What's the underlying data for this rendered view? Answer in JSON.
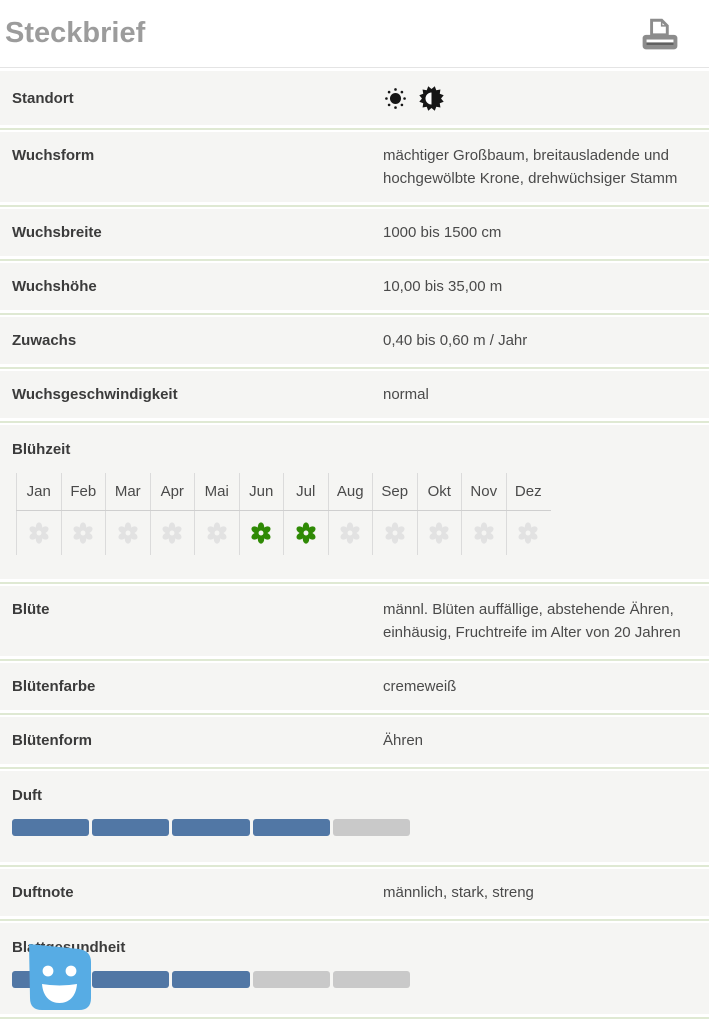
{
  "page": {
    "title": "Steckbrief"
  },
  "toolbar": {
    "print_button": "printer-icon"
  },
  "colors": {
    "bar_filled_blue": "#5177a5",
    "bar_empty_gray": "#c9c9c9",
    "flower_active_green": "#2f8a05",
    "flower_inactive_gray": "#e2e2e2",
    "flower_hole": "#f5f5f3",
    "row_background": "#f5f5f3",
    "divider_green": "#dfe9d3",
    "title_gray": "#9c9c9c",
    "icon_gray": "#8c8c8c",
    "chat_blue": "#57ace4",
    "standort_icon_black": "#161616"
  },
  "rows": [
    {
      "label": "Standort",
      "type": "icons",
      "icons": [
        "sun-icon",
        "half-shade-icon"
      ]
    },
    {
      "label": "Wuchsform",
      "type": "text",
      "value": "mächtiger Großbaum, breitausladende und hochgewölbte Krone, drehwüchsiger Stamm"
    },
    {
      "label": "Wuchsbreite",
      "type": "text",
      "value": "1000 bis 1500 cm"
    },
    {
      "label": "Wuchshöhe",
      "type": "text",
      "value": "10,00 bis 35,00 m"
    },
    {
      "label": "Zuwachs",
      "type": "text",
      "value": "0,40 bis 0,60 m / Jahr"
    },
    {
      "label": "Wuchsgeschwindigkeit",
      "type": "text",
      "value": "normal"
    },
    {
      "label": "Blühzeit",
      "type": "months",
      "months": [
        "Jan",
        "Feb",
        "Mar",
        "Apr",
        "Mai",
        "Jun",
        "Jul",
        "Aug",
        "Sep",
        "Okt",
        "Nov",
        "Dez"
      ],
      "active_month_indexes": [
        5,
        6
      ]
    },
    {
      "label": "Blüte",
      "type": "text",
      "value": "männl. Blüten auffällige, abstehende Ähren, einhäusig, Fruchtreife im Alter von 20 Jahren"
    },
    {
      "label": "Blütenfarbe",
      "type": "text",
      "value": "cremeweiß"
    },
    {
      "label": "Blütenform",
      "type": "text",
      "value": "Ähren"
    },
    {
      "label": "Duft",
      "type": "bar",
      "filled": 4,
      "total": 5
    },
    {
      "label": "Duftnote",
      "type": "text",
      "value": "männlich, stark, streng"
    },
    {
      "label": "Blattgesundheit",
      "type": "bar",
      "filled": 3,
      "total": 5
    }
  ],
  "chat_widget": {
    "icon": "smiley-chat-icon"
  }
}
